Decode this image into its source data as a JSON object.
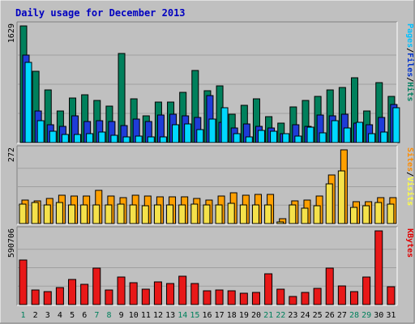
{
  "chart_data": {
    "type": "bar",
    "title": "Daily usage for December 2013",
    "categories": [
      "1",
      "2",
      "3",
      "4",
      "5",
      "6",
      "7",
      "8",
      "9",
      "10",
      "11",
      "12",
      "13",
      "14",
      "15",
      "16",
      "17",
      "18",
      "19",
      "20",
      "21",
      "22",
      "23",
      "24",
      "25",
      "26",
      "27",
      "28",
      "29",
      "30",
      "31"
    ],
    "weekend_days": [
      1,
      7,
      8,
      14,
      15,
      21,
      22,
      28,
      29
    ],
    "panels": [
      {
        "name": "pages-files-hits",
        "ymax_label": "1629",
        "ylim": [
          0,
          1629
        ],
        "grid": true,
        "legend": [
          {
            "text": "Pages",
            "color": "#00c0ff"
          },
          {
            "text": "/",
            "color": "#000000"
          },
          {
            "text": "Files",
            "color": "#0033cc"
          },
          {
            "text": "/",
            "color": "#000000"
          },
          {
            "text": "Hits",
            "color": "#008060"
          }
        ],
        "series": [
          {
            "name": "Hits",
            "color": "#00805c",
            "values": [
              1629,
              1000,
              740,
              440,
              620,
              670,
              590,
              510,
              1240,
              610,
              370,
              570,
              570,
              700,
              1010,
              720,
              790,
              400,
              520,
              610,
              360,
              270,
              500,
              590,
              650,
              730,
              770,
              900,
              440,
              840,
              650
            ]
          },
          {
            "name": "Files",
            "color": "#1e3cd8",
            "values": [
              1220,
              440,
              250,
              230,
              370,
              290,
              300,
              290,
              240,
              330,
              290,
              390,
              400,
              370,
              350,
              660,
              280,
              200,
              260,
              230,
              200,
              120,
              250,
              230,
              390,
              370,
              400,
              270,
              250,
              350,
              530
            ]
          },
          {
            "name": "Pages",
            "color": "#00d8ff",
            "values": [
              1120,
              300,
              160,
              110,
              110,
              120,
              150,
              100,
              80,
              90,
              80,
              80,
              250,
              260,
              180,
              330,
              490,
              120,
              80,
              170,
              160,
              120,
              90,
              220,
              140,
              300,
              200,
              280,
              130,
              150,
              490
            ]
          }
        ]
      },
      {
        "name": "sites-visits",
        "ymax_label": "272",
        "ylim": [
          0,
          272
        ],
        "grid": true,
        "legend": [
          {
            "text": "Sites",
            "color": "#ff8c00"
          },
          {
            "text": "/",
            "color": "#000000"
          },
          {
            "text": "Visits",
            "color": "#ffff40"
          }
        ],
        "series": [
          {
            "name": "Visits",
            "color": "#ffa000",
            "values": [
              88,
              84,
              92,
              104,
              103,
              103,
              123,
              103,
              95,
              104,
              103,
              98,
              100,
              100,
              93,
              88,
              103,
              114,
              106,
              107,
              107,
              18,
              85,
              86,
              103,
              178,
              272,
              80,
              82,
              96,
              95
            ]
          },
          {
            "name": "Sites",
            "color": "#f5e14a",
            "values": [
              72,
              77,
              70,
              78,
              69,
              70,
              68,
              70,
              72,
              69,
              65,
              69,
              70,
              70,
              71,
              70,
              69,
              76,
              69,
              69,
              70,
              6,
              69,
              58,
              65,
              147,
              194,
              59,
              67,
              77,
              72
            ]
          }
        ]
      },
      {
        "name": "kbytes",
        "ymax_label": "590706",
        "ylim": [
          0,
          590706
        ],
        "grid": true,
        "legend": [
          {
            "text": "KBytes",
            "color": "#e00000"
          }
        ],
        "series": [
          {
            "name": "KBytes",
            "color": "#e81818",
            "values": [
              360000,
              115000,
              105000,
              135000,
              200000,
              160000,
              292000,
              115000,
              220000,
              175000,
              122000,
              180000,
              168000,
              228000,
              172000,
              110000,
              120000,
              110000,
              90000,
              95000,
              245000,
              124000,
              65000,
              100000,
              128000,
              290000,
              150000,
              102000,
              222000,
              590706,
              140000
            ]
          }
        ]
      }
    ]
  }
}
